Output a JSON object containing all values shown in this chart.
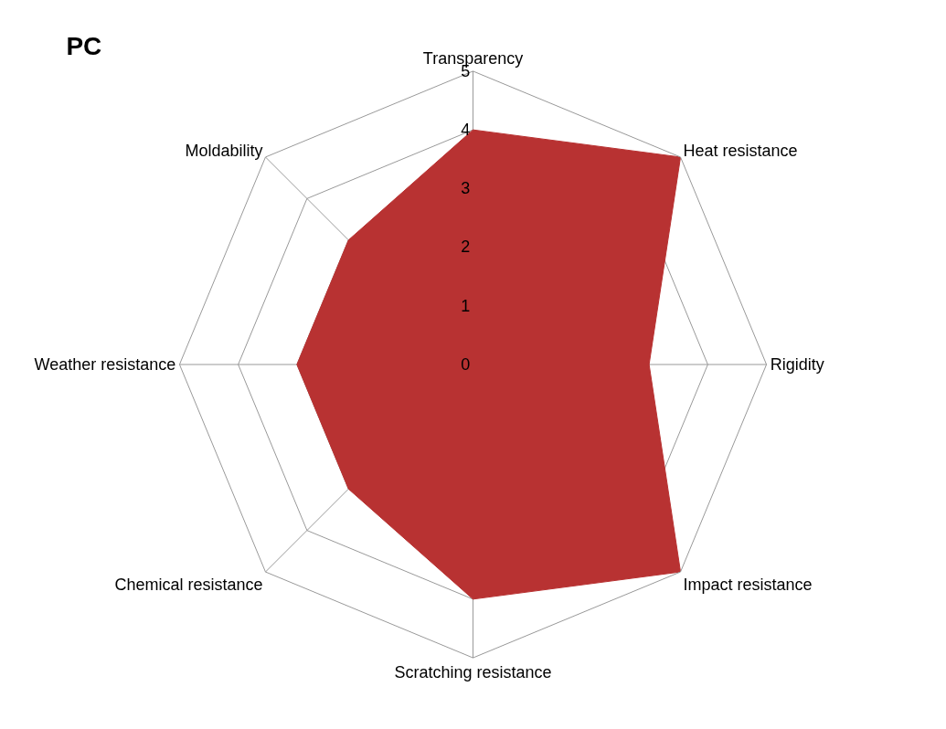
{
  "chart_data": {
    "type": "radar",
    "title": "PC",
    "categories": [
      "Transparency",
      "Heat resistance",
      "Rigidity",
      "Impact resistance",
      "Scratching resistance",
      "Chemical resistance",
      "Weather resistance",
      "Moldability"
    ],
    "series": [
      {
        "color": "#b83232",
        "values": [
          4,
          5,
          3,
          5,
          4,
          3,
          3,
          3
        ]
      }
    ],
    "ylim": [
      0,
      5
    ],
    "yticks": [
      0,
      1,
      2,
      3,
      4,
      5
    ],
    "grid": true
  }
}
